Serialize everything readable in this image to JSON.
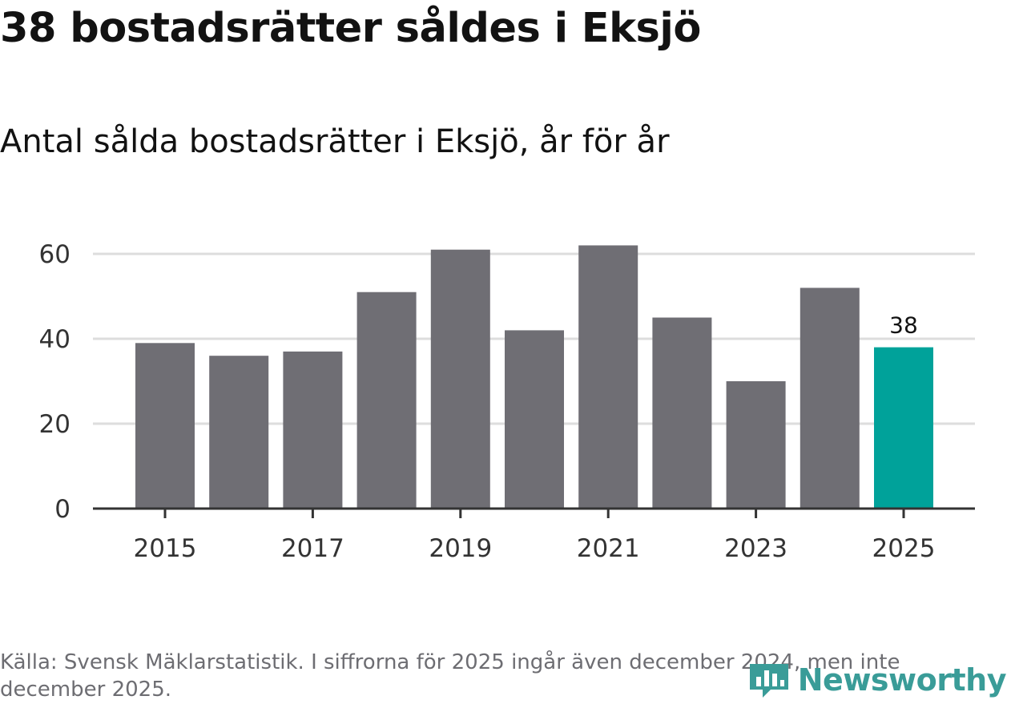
{
  "header": {
    "title": "38 bostadsrätter såldes i Eksjö",
    "subtitle": "Antal sålda bostadsrätter i Eksjö, år för år"
  },
  "footer": {
    "source": "Källa: Svensk Mäklarstatistik. I siffrorna för 2025 ingår även december 2024, men inte december 2025.",
    "brand": "Newsworthy"
  },
  "colors": {
    "bar": "#6f6e74",
    "highlight": "#00a29a",
    "grid": "#dddddd",
    "axis": "#333333",
    "brand": "#3a9c98"
  },
  "chart_data": {
    "type": "bar",
    "title": "38 bostadsrätter såldes i Eksjö",
    "subtitle": "Antal sålda bostadsrätter i Eksjö, år för år",
    "xlabel": "",
    "ylabel": "",
    "categories": [
      "2015",
      "2016",
      "2017",
      "2018",
      "2019",
      "2020",
      "2021",
      "2022",
      "2023",
      "2024",
      "2025"
    ],
    "values": [
      39,
      36,
      37,
      51,
      61,
      42,
      62,
      45,
      30,
      52,
      38
    ],
    "highlight_index": 10,
    "data_labels": [
      {
        "index": 10,
        "text": "38"
      }
    ],
    "x_tick_labels": [
      "2015",
      "2017",
      "2019",
      "2021",
      "2023",
      "2025"
    ],
    "y_ticks": [
      0,
      20,
      40,
      60
    ],
    "ylim": [
      0,
      65
    ],
    "grid": true
  }
}
